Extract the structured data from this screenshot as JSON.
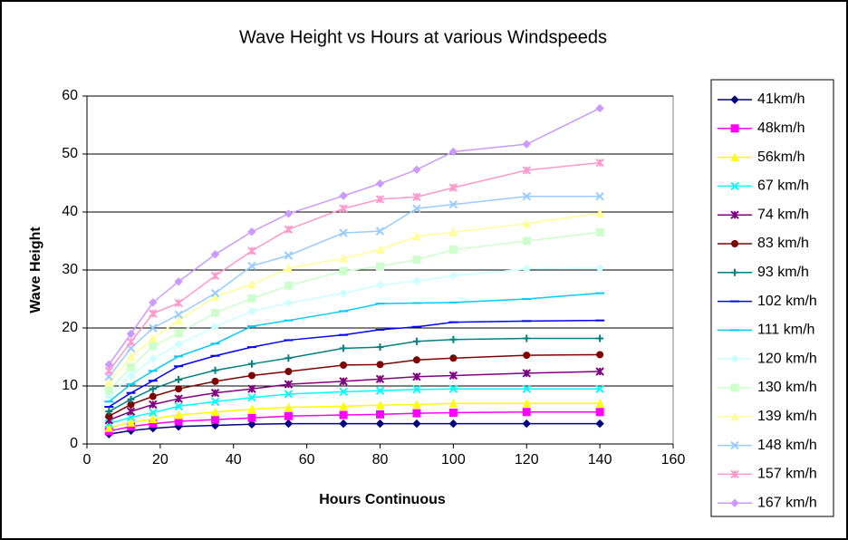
{
  "chart_data": {
    "type": "line",
    "title": "Wave Height vs Hours at various Windspeeds",
    "x_label": "Hours Continuous",
    "y_label": "Wave Height",
    "xlim": [
      0,
      160
    ],
    "xticks": [
      0,
      20,
      40,
      60,
      80,
      100,
      120,
      140,
      160
    ],
    "ylim": [
      0,
      60
    ],
    "yticks": [
      0,
      10,
      20,
      30,
      40,
      50,
      60
    ],
    "grid": true,
    "legend": "right",
    "x": [
      6,
      12,
      18,
      25,
      35,
      45,
      55,
      70,
      80,
      90,
      100,
      120,
      140
    ],
    "series": [
      {
        "name": "41km/h",
        "color": "#000080",
        "marker": "diamond",
        "values": [
          1.7,
          2.3,
          2.7,
          3.0,
          3.2,
          3.4,
          3.5,
          3.5,
          3.5,
          3.5,
          3.5,
          3.5,
          3.5
        ]
      },
      {
        "name": "48km/h",
        "color": "#FF00FF",
        "marker": "square",
        "values": [
          2.2,
          3.0,
          3.5,
          3.9,
          4.2,
          4.5,
          4.8,
          5.0,
          5.1,
          5.3,
          5.4,
          5.5,
          5.5
        ]
      },
      {
        "name": "56km/h",
        "color": "#FFFF00",
        "marker": "triangle",
        "values": [
          2.8,
          3.7,
          4.3,
          5.0,
          5.5,
          6.0,
          6.3,
          6.5,
          6.7,
          6.8,
          7.0,
          7.0,
          7.0
        ]
      },
      {
        "name": "67 km/h",
        "color": "#00FFFF",
        "marker": "x",
        "values": [
          3.5,
          4.6,
          5.4,
          6.5,
          7.3,
          8.0,
          8.6,
          9.0,
          9.2,
          9.4,
          9.5,
          9.5,
          9.5
        ]
      },
      {
        "name": "74 km/h",
        "color": "#800080",
        "marker": "star",
        "values": [
          4.1,
          5.6,
          6.8,
          7.8,
          8.8,
          9.5,
          10.3,
          10.8,
          11.2,
          11.6,
          11.8,
          12.2,
          12.5
        ]
      },
      {
        "name": "83 km/h",
        "color": "#800000",
        "marker": "circle",
        "values": [
          4.8,
          6.8,
          8.2,
          9.5,
          10.8,
          11.8,
          12.5,
          13.6,
          13.7,
          14.5,
          14.8,
          15.3,
          15.4
        ]
      },
      {
        "name": "93 km/h",
        "color": "#008080",
        "marker": "plus",
        "values": [
          5.6,
          7.7,
          9.5,
          11.1,
          12.7,
          13.8,
          14.8,
          16.5,
          16.7,
          17.7,
          18.0,
          18.2,
          18.2
        ]
      },
      {
        "name": "102 km/h",
        "color": "#0000FF",
        "marker": "dash",
        "values": [
          6.4,
          8.8,
          10.9,
          13.4,
          15.2,
          16.7,
          17.9,
          18.8,
          19.7,
          20.2,
          21.0,
          21.2,
          21.3
        ]
      },
      {
        "name": "111 km/h",
        "color": "#00CCFF",
        "marker": "dash",
        "values": [
          7.3,
          10.3,
          12.6,
          15.1,
          17.3,
          20.3,
          21.3,
          22.9,
          24.2,
          24.3,
          24.4,
          25.0,
          26.0
        ]
      },
      {
        "name": "120 km/h",
        "color": "#CCFFFF",
        "marker": "diamond",
        "values": [
          8.2,
          11.8,
          14.7,
          17.2,
          20.2,
          22.9,
          24.3,
          26.0,
          27.4,
          28.1,
          29.0,
          30.2,
          30.3
        ]
      },
      {
        "name": "130 km/h",
        "color": "#CCFFCC",
        "marker": "square",
        "values": [
          9.3,
          13.2,
          16.9,
          19.1,
          22.6,
          25.1,
          27.3,
          29.8,
          30.6,
          31.8,
          33.5,
          35.0,
          36.5
        ]
      },
      {
        "name": "139 km/h",
        "color": "#FFFF99",
        "marker": "triangle",
        "values": [
          10.6,
          15.0,
          18.2,
          21.3,
          25.4,
          27.5,
          30.3,
          32.0,
          33.5,
          35.8,
          36.5,
          38.0,
          39.8
        ]
      },
      {
        "name": "148 km/h",
        "color": "#99CCFF",
        "marker": "x",
        "values": [
          11.6,
          16.5,
          20.0,
          22.3,
          26.0,
          30.7,
          32.5,
          36.4,
          36.7,
          40.6,
          41.3,
          42.7,
          42.7
        ]
      },
      {
        "name": "157 km/h",
        "color": "#FF99CC",
        "marker": "star",
        "values": [
          12.6,
          17.6,
          22.5,
          24.3,
          29.0,
          33.3,
          37.0,
          40.6,
          42.2,
          42.6,
          44.2,
          47.2,
          48.5
        ]
      },
      {
        "name": "167 km/h",
        "color": "#CC99FF",
        "marker": "diamond",
        "values": [
          13.7,
          19.0,
          24.4,
          28.0,
          32.7,
          36.6,
          39.7,
          42.8,
          44.9,
          47.3,
          50.4,
          51.7,
          57.9
        ]
      }
    ]
  }
}
